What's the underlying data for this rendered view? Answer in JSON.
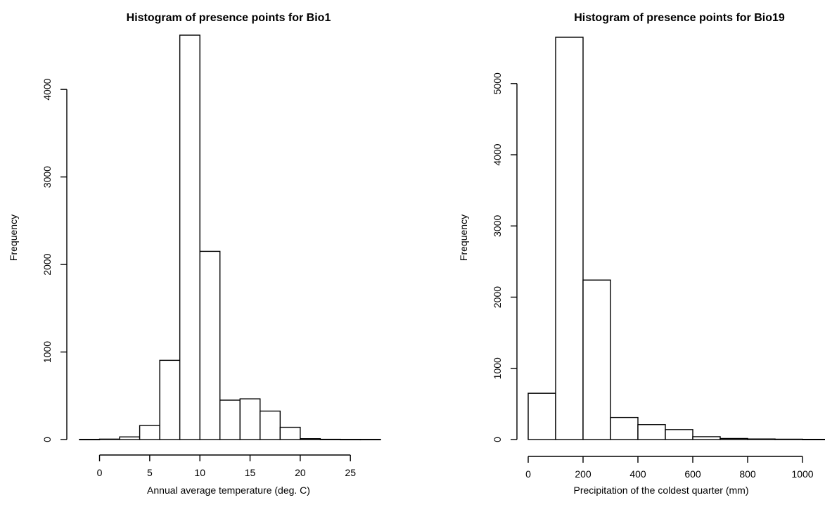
{
  "chart_data": [
    {
      "type": "bar",
      "title": "Histogram of presence points for Bio1",
      "xlabel": "Annual average temperature (deg. C)",
      "ylabel": "Frequency",
      "bin_edges": [
        -2,
        0,
        2,
        4,
        6,
        8,
        10,
        12,
        14,
        16,
        18,
        20,
        22,
        24,
        26,
        28
      ],
      "values": [
        2,
        5,
        30,
        160,
        905,
        4620,
        2150,
        450,
        465,
        325,
        140,
        10,
        3,
        2,
        2
      ],
      "xlim": [
        -2,
        28
      ],
      "ylim": [
        0,
        4620
      ],
      "xticks": [
        0,
        5,
        10,
        15,
        20,
        25
      ],
      "yticks": [
        0,
        1000,
        2000,
        3000,
        4000
      ],
      "grid": false
    },
    {
      "type": "bar",
      "title": "Histogram of presence points for Bio19",
      "xlabel": "Precipitation of the coldest quarter (mm)",
      "ylabel": "Frequency",
      "bin_edges": [
        0,
        100,
        200,
        300,
        400,
        500,
        600,
        700,
        800,
        900,
        1000,
        1100
      ],
      "values": [
        650,
        5650,
        2240,
        310,
        210,
        140,
        40,
        15,
        8,
        5,
        3
      ],
      "xlim": [
        0,
        1100
      ],
      "ylim": [
        0,
        5650
      ],
      "xticks": [
        0,
        200,
        400,
        600,
        800,
        1000
      ],
      "yticks": [
        0,
        1000,
        2000,
        3000,
        4000,
        5000
      ],
      "grid": false
    }
  ]
}
